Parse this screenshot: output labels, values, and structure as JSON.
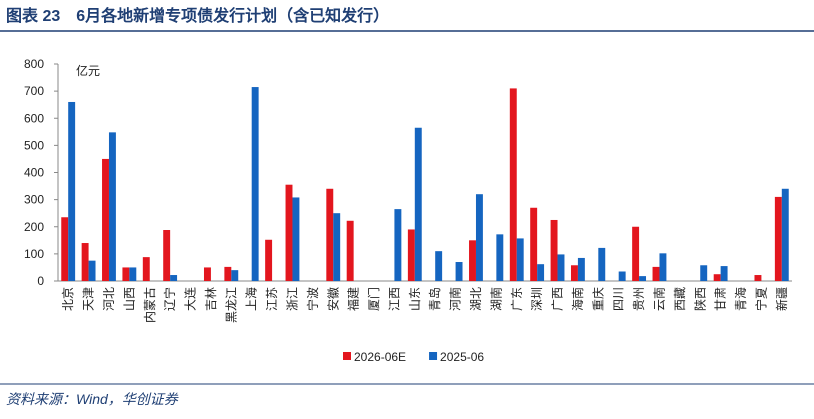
{
  "chart_data": {
    "type": "bar",
    "title": "图表 23　6月各地新增专项债发行计划（含已知发行）",
    "y_label": "亿元",
    "source": "资料来源：Wind，华创证券",
    "categories": [
      "北京",
      "天津",
      "河北",
      "山西",
      "内蒙古",
      "辽宁",
      "大连",
      "吉林",
      "黑龙江",
      "上海",
      "江苏",
      "浙江",
      "宁波",
      "安徽",
      "福建",
      "厦门",
      "江西",
      "山东",
      "青岛",
      "河南",
      "湖北",
      "湖南",
      "广东",
      "深圳",
      "广西",
      "海南",
      "重庆",
      "四川",
      "贵州",
      "云南",
      "西藏",
      "陕西",
      "甘肃",
      "青海",
      "宁夏",
      "新疆"
    ],
    "series": [
      {
        "name": "2026-06E",
        "color": "#e3161e",
        "values": [
          235,
          140,
          450,
          50,
          88,
          188,
          null,
          50,
          52,
          null,
          152,
          355,
          null,
          340,
          222,
          null,
          null,
          190,
          null,
          null,
          150,
          null,
          710,
          270,
          225,
          58,
          null,
          null,
          200,
          52,
          null,
          null,
          25,
          null,
          22,
          310
        ]
      },
      {
        "name": "2025-06",
        "color": "#1565c0",
        "values": [
          660,
          75,
          548,
          50,
          null,
          22,
          null,
          null,
          40,
          715,
          null,
          308,
          null,
          250,
          null,
          null,
          265,
          565,
          110,
          70,
          320,
          172,
          157,
          62,
          98,
          85,
          122,
          35,
          18,
          102,
          null,
          58,
          55,
          null,
          null,
          340
        ]
      }
    ],
    "ylim": [
      0,
      800
    ],
    "yticks": [
      0,
      100,
      200,
      300,
      400,
      500,
      600,
      700,
      800
    ],
    "grid": false,
    "legend": "bottom"
  }
}
